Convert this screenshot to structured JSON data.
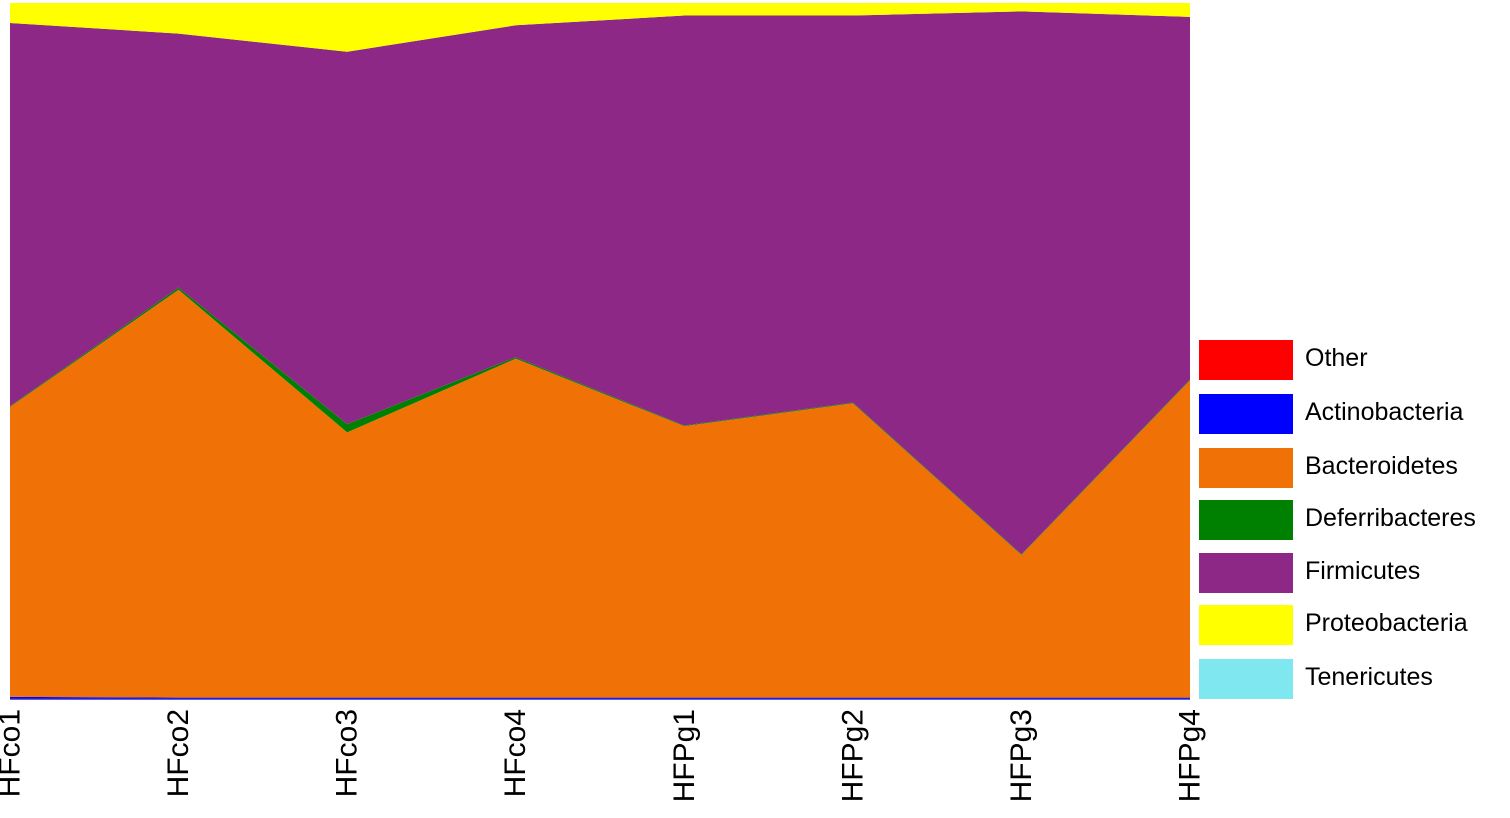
{
  "chart_data": {
    "type": "area",
    "stacked": true,
    "normalized": true,
    "categories": [
      "HFco1",
      "HFco2",
      "HFco3",
      "HFco4",
      "HFPg1",
      "HFPg2",
      "HFPg3",
      "HFPg4"
    ],
    "ylim": [
      0,
      1
    ],
    "grid": false,
    "legend_position": "right",
    "series": [
      {
        "name": "Tenericutes",
        "color": "#7FE7F0",
        "values": [
          0.0,
          0.0,
          0.0,
          0.0,
          0.0,
          0.0,
          0.0,
          0.0
        ]
      },
      {
        "name": "Actinobacteria",
        "color": "#0000FF",
        "values": [
          0.003,
          0.002,
          0.002,
          0.002,
          0.002,
          0.002,
          0.002,
          0.002
        ]
      },
      {
        "name": "Other",
        "color": "#FF0000",
        "values": [
          0.0,
          0.0,
          0.0,
          0.0,
          0.0,
          0.0,
          0.0,
          0.0
        ]
      },
      {
        "name": "Bacteroidetes",
        "color": "#F07207",
        "values": [
          0.421,
          0.586,
          0.381,
          0.487,
          0.39,
          0.423,
          0.205,
          0.456
        ]
      },
      {
        "name": "Deferribacteres",
        "color": "#008000",
        "values": [
          0.001,
          0.003,
          0.012,
          0.002,
          0.001,
          0.001,
          0.001,
          0.001
        ]
      },
      {
        "name": "Firmicutes",
        "color": "#8E2887",
        "values": [
          0.556,
          0.365,
          0.535,
          0.477,
          0.589,
          0.556,
          0.78,
          0.521
        ]
      },
      {
        "name": "Proteobacteria",
        "color": "#FFFF00",
        "values": [
          0.029,
          0.044,
          0.07,
          0.032,
          0.018,
          0.018,
          0.012,
          0.02
        ]
      }
    ],
    "legend_order": [
      "Other",
      "Actinobacteria",
      "Bacteroidetes",
      "Deferribacteres",
      "Firmicutes",
      "Proteobacteria",
      "Tenericutes"
    ]
  }
}
